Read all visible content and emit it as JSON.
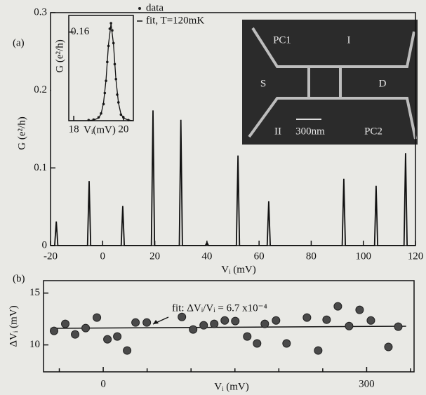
{
  "chart_data": [
    {
      "type": "line",
      "panel_label": "(a)",
      "xlabel": "Vᵢ (mV)",
      "ylabel": "G (e²/h)",
      "color": "#111111",
      "xlim": [
        -20,
        120
      ],
      "xticks": [
        -20,
        0,
        20,
        40,
        60,
        80,
        100,
        120
      ],
      "ylim": [
        0,
        0.3
      ],
      "yticks": [
        0,
        0.1,
        0.2,
        0.3
      ],
      "grid": false,
      "x": [
        -20,
        -18.4,
        -17.8,
        -17.2,
        -5.8,
        -5.2,
        -4.6,
        7.1,
        7.7,
        8.3,
        18.7,
        19.3,
        19.9,
        29.4,
        30,
        30.6,
        39.4,
        40,
        40.6,
        51.3,
        51.9,
        52.5,
        63.1,
        63.7,
        64.3,
        91.9,
        92.5,
        93.1,
        104.3,
        104.9,
        105.5,
        115.6,
        116.2,
        116.8,
        120
      ],
      "values": [
        0,
        0,
        0.031,
        0,
        0,
        0.083,
        0,
        0,
        0.051,
        0,
        0,
        0.174,
        0,
        0,
        0.162,
        0,
        0,
        0.004,
        0,
        0,
        0.116,
        0,
        0,
        0.057,
        0,
        0,
        0.086,
        0,
        0,
        0.077,
        0,
        0,
        0.119,
        0,
        0
      ],
      "image_labels": [
        "PC1",
        "I",
        "S",
        "D",
        "II",
        "300nm",
        "PC2"
      ]
    },
    {
      "type": "line",
      "xlabel": "Vᵢ(mV)",
      "ylabel": "G (e²/h)",
      "xlim": [
        17.8,
        20.4
      ],
      "xticks": [
        18,
        20
      ],
      "ylim": [
        0,
        0.19
      ],
      "yticks": [
        0.16
      ],
      "series": [
        {
          "name": "data",
          "style": "markers",
          "color": "#222222",
          "x": [
            18.6,
            18.8,
            19.0,
            19.1,
            19.2,
            19.25,
            19.3,
            19.35,
            19.4,
            19.45,
            19.5,
            19.55,
            19.6,
            19.65,
            19.7,
            19.75,
            19.8,
            19.9,
            20.0,
            20.2
          ],
          "values": [
            0.001,
            0.002,
            0.006,
            0.013,
            0.03,
            0.05,
            0.072,
            0.106,
            0.135,
            0.166,
            0.176,
            0.163,
            0.14,
            0.102,
            0.075,
            0.047,
            0.033,
            0.011,
            0.006,
            0.001
          ]
        },
        {
          "name": "fit, T=120mK",
          "style": "line",
          "color": "#111111",
          "x": [
            17.8,
            18.5,
            18.8,
            19.0,
            19.1,
            19.2,
            19.3,
            19.4,
            19.5,
            19.6,
            19.7,
            19.8,
            19.9,
            20.0,
            20.2,
            20.4
          ],
          "values": [
            0,
            0,
            0.001,
            0.005,
            0.012,
            0.032,
            0.074,
            0.138,
            0.175,
            0.138,
            0.074,
            0.032,
            0.012,
            0.005,
            0.001,
            0
          ]
        }
      ]
    },
    {
      "type": "scatter",
      "panel_label": "(b)",
      "xlabel": "Vᵢ (mV)",
      "ylabel": "ΔVᵢ (mV)",
      "color": "#4a4a4a",
      "xlim": [
        -68,
        354
      ],
      "xticks": [
        0,
        300
      ],
      "minor_xticks": [
        -50,
        50,
        100,
        150,
        200,
        250,
        350
      ],
      "ylim": [
        7.4,
        16.2
      ],
      "yticks": [
        10,
        15
      ],
      "x": [
        -56,
        -43.2,
        -32,
        -20,
        -7.2,
        4.8,
        16,
        27.2,
        36.8,
        49.6,
        89.6,
        102.4,
        114.4,
        126.4,
        138.4,
        150.4,
        164,
        175.2,
        184,
        196.8,
        208.8,
        232,
        244.8,
        254.4,
        267.2,
        280,
        292,
        304.8,
        324.8,
        336
      ],
      "values": [
        11.35,
        12.03,
        11.01,
        11.62,
        12.64,
        10.54,
        10.81,
        9.46,
        12.16,
        12.16,
        12.7,
        11.49,
        11.89,
        12.03,
        12.36,
        12.3,
        10.81,
        10.14,
        12.03,
        12.36,
        10.14,
        12.64,
        9.46,
        12.43,
        13.72,
        11.82,
        13.38,
        12.36,
        9.8,
        11.76
      ],
      "fit": {
        "label": "fit: ΔVᵢ/Vᵢ = 6.7 x10⁻⁴",
        "x": [
          -60,
          345
        ],
        "values": [
          11.6,
          11.8
        ]
      }
    }
  ]
}
